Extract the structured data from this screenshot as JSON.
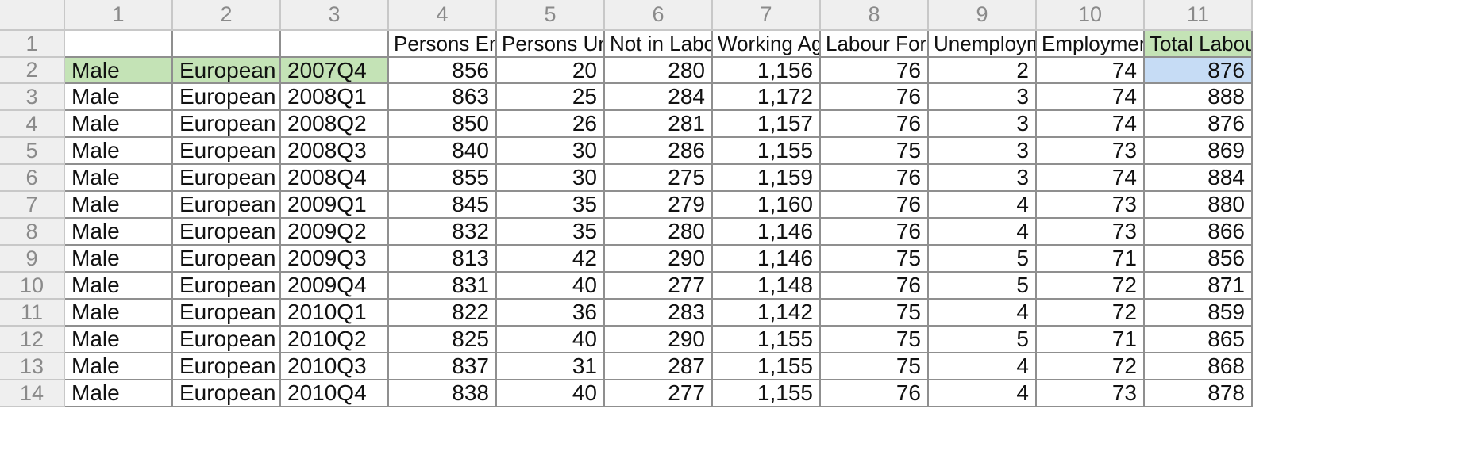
{
  "column_headers": [
    "1",
    "2",
    "3",
    "4",
    "5",
    "6",
    "7",
    "8",
    "9",
    "10",
    "11"
  ],
  "row_headers": [
    "1",
    "2",
    "3",
    "4",
    "5",
    "6",
    "7",
    "8",
    "9",
    "10",
    "11",
    "12",
    "13",
    "14"
  ],
  "header_row": [
    "",
    "",
    "",
    "Persons Em",
    "Persons Un",
    "Not in Labo",
    "Working Ag",
    "Labour Forc",
    "Unemploym",
    "Employmen",
    "Total Labou"
  ],
  "rows": [
    [
      "Male",
      "European O",
      "2007Q4",
      "856",
      "20",
      "280",
      "1,156",
      "76",
      "2",
      "74",
      "876"
    ],
    [
      "Male",
      "European O",
      "2008Q1",
      "863",
      "25",
      "284",
      "1,172",
      "76",
      "3",
      "74",
      "888"
    ],
    [
      "Male",
      "European O",
      "2008Q2",
      "850",
      "26",
      "281",
      "1,157",
      "76",
      "3",
      "74",
      "876"
    ],
    [
      "Male",
      "European O",
      "2008Q3",
      "840",
      "30",
      "286",
      "1,155",
      "75",
      "3",
      "73",
      "869"
    ],
    [
      "Male",
      "European O",
      "2008Q4",
      "855",
      "30",
      "275",
      "1,159",
      "76",
      "3",
      "74",
      "884"
    ],
    [
      "Male",
      "European O",
      "2009Q1",
      "845",
      "35",
      "279",
      "1,160",
      "76",
      "4",
      "73",
      "880"
    ],
    [
      "Male",
      "European O",
      "2009Q2",
      "832",
      "35",
      "280",
      "1,146",
      "76",
      "4",
      "73",
      "866"
    ],
    [
      "Male",
      "European O",
      "2009Q3",
      "813",
      "42",
      "290",
      "1,146",
      "75",
      "5",
      "71",
      "856"
    ],
    [
      "Male",
      "European O",
      "2009Q4",
      "831",
      "40",
      "277",
      "1,148",
      "76",
      "5",
      "72",
      "871"
    ],
    [
      "Male",
      "European O",
      "2010Q1",
      "822",
      "36",
      "283",
      "1,142",
      "75",
      "4",
      "72",
      "859"
    ],
    [
      "Male",
      "European O",
      "2010Q2",
      "825",
      "40",
      "290",
      "1,155",
      "75",
      "5",
      "71",
      "865"
    ],
    [
      "Male",
      "European O",
      "2010Q3",
      "837",
      "31",
      "287",
      "1,155",
      "75",
      "4",
      "72",
      "868"
    ],
    [
      "Male",
      "European O",
      "2010Q4",
      "838",
      "40",
      "277",
      "1,155",
      "76",
      "4",
      "73",
      "878"
    ]
  ],
  "colors": {
    "highlight_green": "#c4e3b6",
    "selected_blue": "#c6dcf5"
  }
}
